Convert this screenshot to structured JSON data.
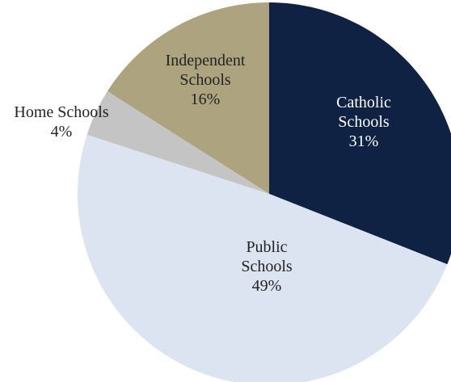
{
  "chart_data": {
    "type": "pie",
    "title": "",
    "legend": "none",
    "slices": [
      {
        "label": "Catholic Schools",
        "lines": [
          "Catholic",
          "Schools"
        ],
        "value": 31,
        "display": "31%",
        "color": "#0f2243",
        "text_color": "#ffffff"
      },
      {
        "label": "Public Schools",
        "lines": [
          "Public",
          "Schools"
        ],
        "value": 49,
        "display": "49%",
        "color": "#dbe4f0",
        "text_color": "#222222"
      },
      {
        "label": "Home Schools",
        "lines": [
          "Home Schools"
        ],
        "value": 4,
        "display": "4%",
        "color": "#c4c4c4",
        "text_color": "#222222"
      },
      {
        "label": "Independent Schools",
        "lines": [
          "Independent",
          "Schools"
        ],
        "value": 16,
        "display": "16%",
        "color": "#ada37e",
        "text_color": "#222222"
      }
    ]
  }
}
